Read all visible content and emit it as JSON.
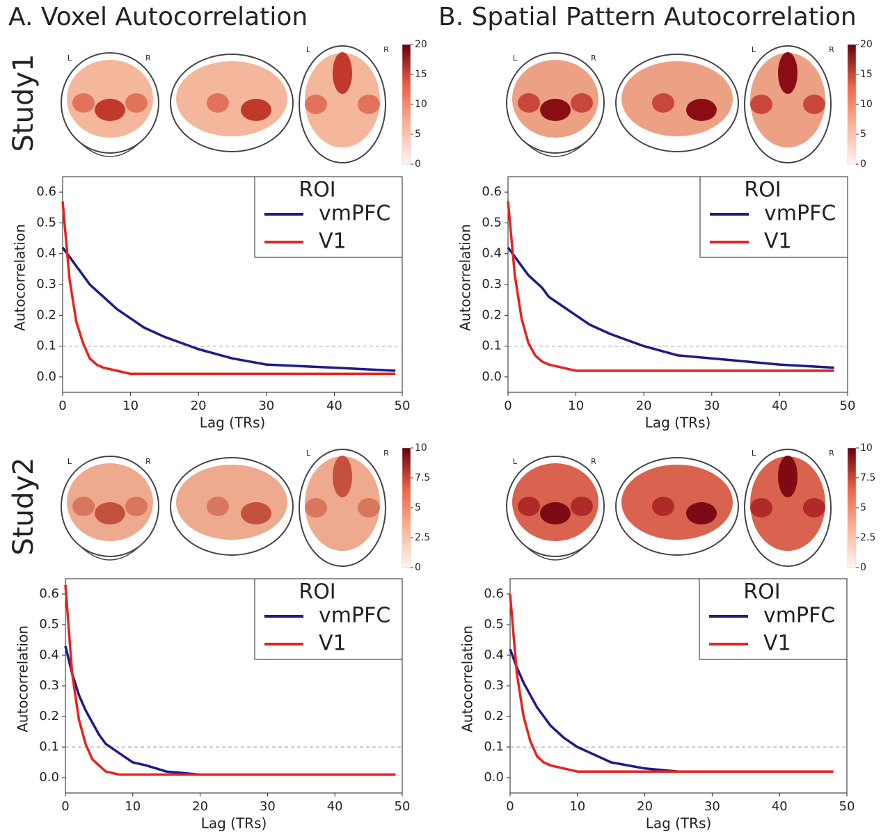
{
  "column_titles": [
    "A. Voxel Autocorrelation",
    "B. Spatial Pattern Autocorrelation"
  ],
  "row_labels": [
    "Study1",
    "Study2"
  ],
  "brain_maps": [
    {
      "view_labels": [
        "L",
        "R",
        "L",
        "R"
      ],
      "colorbar_lim": [
        0,
        20
      ],
      "colorbar_ticks": [
        0,
        5,
        10,
        15,
        20
      ]
    },
    {
      "view_labels": [
        "L",
        "R",
        "L",
        "R"
      ],
      "colorbar_lim": [
        0,
        20
      ],
      "colorbar_ticks": [
        0,
        5,
        10,
        15,
        20
      ]
    },
    {
      "view_labels": [
        "L",
        "R",
        "L",
        "R"
      ],
      "colorbar_lim": [
        0,
        10
      ],
      "colorbar_ticks": [
        0,
        2.5,
        5,
        7.5,
        10
      ]
    },
    {
      "view_labels": [
        "L",
        "R",
        "L",
        "R"
      ],
      "colorbar_lim": [
        0,
        10
      ],
      "colorbar_ticks": [
        0,
        2.5,
        5,
        7.5,
        10
      ]
    }
  ],
  "chart_data": [
    {
      "type": "line",
      "xlabel": "Lag (TRs)",
      "ylabel": "Autocorrelation",
      "legend_title": "ROI",
      "legend": "upper right",
      "x": [
        0,
        1,
        2,
        3,
        4,
        5,
        6,
        8,
        10,
        12,
        15,
        20,
        25,
        30,
        40,
        49
      ],
      "series": [
        {
          "name": "vmPFC",
          "color": "#1c1c8a",
          "values": [
            0.42,
            0.39,
            0.36,
            0.33,
            0.3,
            0.28,
            0.26,
            0.22,
            0.19,
            0.16,
            0.13,
            0.09,
            0.06,
            0.04,
            0.03,
            0.02
          ]
        },
        {
          "name": "V1",
          "color": "#e8221c",
          "values": [
            0.57,
            0.32,
            0.18,
            0.11,
            0.06,
            0.04,
            0.03,
            0.02,
            0.01,
            0.01,
            0.01,
            0.01,
            0.01,
            0.01,
            0.01,
            0.01
          ]
        }
      ],
      "hline": 0.1,
      "xlim": [
        0,
        50
      ],
      "ylim": [
        -0.05,
        0.65
      ],
      "xticks": [
        0,
        10,
        20,
        30,
        40,
        50
      ],
      "yticks": [
        {
          "value": 0,
          "label": "0.0"
        },
        0.1,
        0.2,
        0.3,
        0.4,
        0.5,
        0.6
      ]
    },
    {
      "type": "line",
      "xlabel": "Lag (TRs)",
      "ylabel": "Autocorrelation",
      "legend_title": "ROI",
      "legend": "upper right",
      "x": [
        0,
        1,
        2,
        3,
        4,
        5,
        6,
        8,
        10,
        12,
        15,
        20,
        25,
        30,
        40,
        48
      ],
      "series": [
        {
          "name": "vmPFC",
          "color": "#1c1c8a",
          "values": [
            0.42,
            0.39,
            0.36,
            0.33,
            0.31,
            0.29,
            0.26,
            0.23,
            0.2,
            0.17,
            0.14,
            0.1,
            0.07,
            0.06,
            0.04,
            0.03
          ]
        },
        {
          "name": "V1",
          "color": "#e8221c",
          "values": [
            0.57,
            0.33,
            0.19,
            0.11,
            0.07,
            0.05,
            0.04,
            0.03,
            0.02,
            0.02,
            0.02,
            0.02,
            0.02,
            0.02,
            0.02,
            0.02
          ]
        }
      ],
      "hline": 0.1,
      "xlim": [
        0,
        50
      ],
      "ylim": [
        -0.05,
        0.65
      ],
      "xticks": [
        0,
        10,
        20,
        30,
        40,
        50
      ],
      "yticks": [
        {
          "value": 0,
          "label": "0.0"
        },
        0.1,
        0.2,
        0.3,
        0.4,
        0.5,
        0.6
      ]
    },
    {
      "type": "line",
      "xlabel": "Lag (TRs)",
      "ylabel": "Autocorrelation",
      "legend_title": "ROI",
      "legend": "upper right",
      "x": [
        0,
        1,
        2,
        3,
        4,
        5,
        6,
        8,
        10,
        12,
        15,
        20,
        25,
        30,
        40,
        49
      ],
      "series": [
        {
          "name": "vmPFC",
          "color": "#1c1c8a",
          "values": [
            0.43,
            0.34,
            0.27,
            0.22,
            0.18,
            0.14,
            0.11,
            0.08,
            0.05,
            0.04,
            0.02,
            0.01,
            0.01,
            0.01,
            0.01,
            0.01
          ]
        },
        {
          "name": "V1",
          "color": "#e8221c",
          "values": [
            0.63,
            0.34,
            0.19,
            0.11,
            0.06,
            0.04,
            0.02,
            0.01,
            0.01,
            0.01,
            0.01,
            0.01,
            0.01,
            0.01,
            0.01,
            0.01
          ]
        }
      ],
      "hline": 0.1,
      "xlim": [
        0,
        50
      ],
      "ylim": [
        -0.05,
        0.65
      ],
      "xticks": [
        0,
        10,
        20,
        30,
        40,
        50
      ],
      "yticks": [
        {
          "value": 0,
          "label": "0.0"
        },
        0.1,
        0.2,
        0.3,
        0.4,
        0.5,
        0.6
      ]
    },
    {
      "type": "line",
      "xlabel": "Lag (TRs)",
      "ylabel": "Autocorrelation",
      "legend_title": "ROI",
      "legend": "upper right",
      "x": [
        0,
        1,
        2,
        3,
        4,
        5,
        6,
        8,
        10,
        12,
        15,
        20,
        25,
        30,
        40,
        48
      ],
      "series": [
        {
          "name": "vmPFC",
          "color": "#1c1c8a",
          "values": [
            0.42,
            0.36,
            0.31,
            0.27,
            0.23,
            0.2,
            0.17,
            0.13,
            0.1,
            0.08,
            0.05,
            0.03,
            0.02,
            0.02,
            0.02,
            0.02
          ]
        },
        {
          "name": "V1",
          "color": "#e8221c",
          "values": [
            0.6,
            0.34,
            0.2,
            0.12,
            0.07,
            0.05,
            0.04,
            0.03,
            0.02,
            0.02,
            0.02,
            0.02,
            0.02,
            0.02,
            0.02,
            0.02
          ]
        }
      ],
      "hline": 0.1,
      "xlim": [
        0,
        50
      ],
      "ylim": [
        -0.05,
        0.65
      ],
      "xticks": [
        0,
        10,
        20,
        30,
        40,
        50
      ],
      "yticks": [
        {
          "value": 0,
          "label": "0.0"
        },
        0.1,
        0.2,
        0.3,
        0.4,
        0.5,
        0.6
      ]
    }
  ]
}
